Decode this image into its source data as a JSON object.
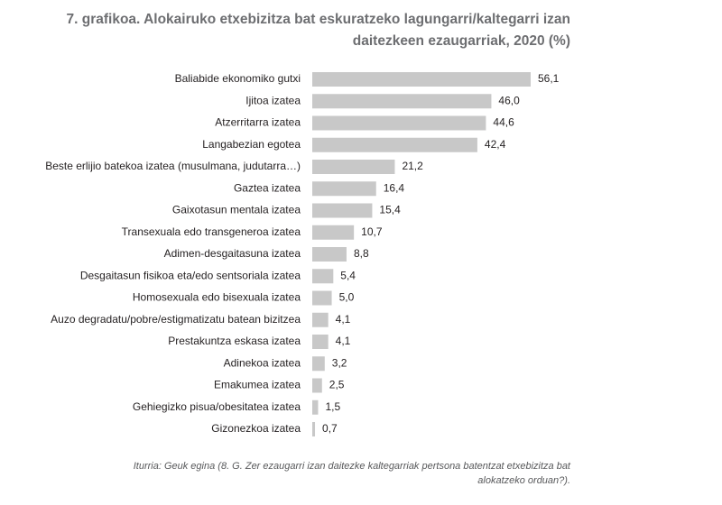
{
  "chart_data": {
    "type": "bar",
    "orientation": "horizontal",
    "title": [
      "7. grafikoa. Alokairuko etxebizitza bat eskuratzeko lagungarri/kaltegarri izan",
      "daitezkeen ezaugarriak, 2020 (%)"
    ],
    "categories": [
      "Baliabide ekonomiko gutxi",
      "Ijitoa izatea",
      "Atzerritarra izatea",
      "Langabezian egotea",
      "Beste erlijio batekoa izatea (musulmana, judutarra…)",
      "Gaztea izatea",
      "Gaixotasun mentala izatea",
      "Transexuala edo transgeneroa izatea",
      "Adimen-desgaitasuna izatea",
      "Desgaitasun fisikoa eta/edo sentsoriala izatea",
      "Homosexuala edo bisexuala izatea",
      "Auzo degradatu/pobre/estigmatizatu batean bizitzea",
      "Prestakuntza eskasa izatea",
      "Adinekoa izatea",
      "Emakumea izatea",
      "Gehiegizko pisua/obesitatea izatea",
      "Gizonezkoa izatea"
    ],
    "values": [
      56.1,
      46.0,
      44.6,
      42.4,
      21.2,
      16.4,
      15.4,
      10.7,
      8.8,
      5.4,
      5.0,
      4.1,
      4.1,
      3.2,
      2.5,
      1.5,
      0.7
    ],
    "value_labels": [
      "56,1",
      "46,0",
      "44,6",
      "42,4",
      "21,2",
      "16,4",
      "15,4",
      "10,7",
      "8,8",
      "5,4",
      "5,0",
      "4,1",
      "4,1",
      "3,2",
      "2,5",
      "1,5",
      "0,7"
    ],
    "color": "#c8c8c8",
    "source": [
      "Iturria: Geuk egina (8. G. Zer ezaugarri izan daitezke kaltegarriak pertsona batentzat etxebizitza bat",
      "alokatzeko orduan?)."
    ]
  }
}
